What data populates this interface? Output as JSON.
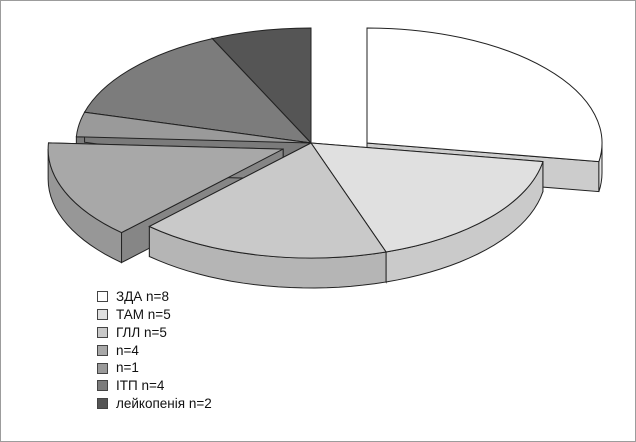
{
  "chart_data": {
    "type": "pie",
    "title": "",
    "legend_position": "bottom-left",
    "exploded": true,
    "three_d": true,
    "series": [
      {
        "label": "ЗДА n=8",
        "value": 8,
        "color": "#ffffff"
      },
      {
        "label": "ТАМ n=5",
        "value": 5,
        "color": "#e0e0e0"
      },
      {
        "label": "ГЛЛ n=5",
        "value": 5,
        "color": "#c9c9c9"
      },
      {
        "label": "n=4",
        "value": 4,
        "color": "#a8a8a8"
      },
      {
        "label": "n=1",
        "value": 1,
        "color": "#9a9a9a"
      },
      {
        "label": "ІТП n=4",
        "value": 4,
        "color": "#7c7c7c"
      },
      {
        "label": "лейкопенія n=2",
        "value": 2,
        "color": "#555555"
      }
    ]
  }
}
